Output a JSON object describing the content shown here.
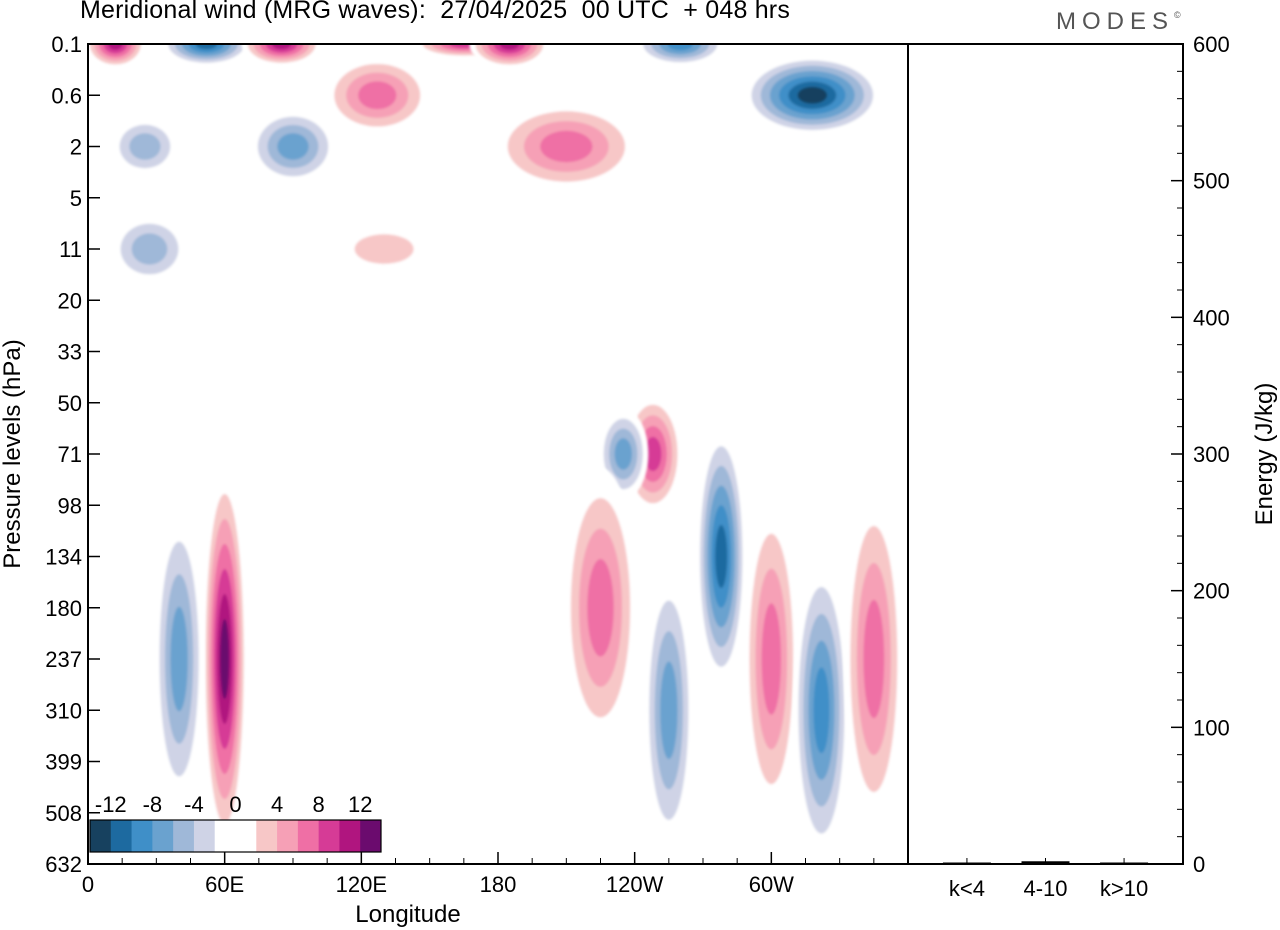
{
  "header": {
    "title": "Meridional wind (MRG waves):  27/04/2025  00 UTC  + 048 hrs",
    "logo": "MODES",
    "logo_mark": "©"
  },
  "chart_data": [
    {
      "type": "heatmap",
      "title": "Meridional wind (MRG waves):  27/04/2025  00 UTC  + 048 hrs",
      "xlabel": "Longitude",
      "ylabel": "Pressure levels (hPa)",
      "x_ticks": [
        "0",
        "60E",
        "120E",
        "180",
        "120W",
        "60W"
      ],
      "x_tick_values": [
        0,
        60,
        120,
        180,
        240,
        300
      ],
      "xlim": [
        0,
        360
      ],
      "y_ticks": [
        "0.1",
        "0.6",
        "2",
        "5",
        "11",
        "20",
        "33",
        "50",
        "71",
        "98",
        "134",
        "180",
        "237",
        "310",
        "399",
        "508",
        "632"
      ],
      "y_axis_inverted": true,
      "colorbar": {
        "labels": [
          "-12",
          "-8",
          "-4",
          "0",
          "4",
          "8",
          "12"
        ],
        "label_values": [
          -12,
          -8,
          -4,
          0,
          4,
          8,
          12
        ],
        "levels": [
          -14,
          -12,
          -10,
          -8,
          -6,
          -4,
          -2,
          0,
          2,
          4,
          6,
          8,
          10,
          12,
          14
        ],
        "colors": [
          "#17415f",
          "#1d6aa0",
          "#3f8fc8",
          "#6aa2cf",
          "#9fb8d8",
          "#cfd3e6",
          "#ffffff",
          "#ffffff",
          "#f7c7c7",
          "#f6a0b6",
          "#ef6fa5",
          "#d63b96",
          "#b0157f",
          "#6b0b6e"
        ]
      },
      "features": [
        {
          "lon": 12,
          "level": "0.1",
          "value": 12
        },
        {
          "lon": 52,
          "level": "0.1",
          "value": -12
        },
        {
          "lon": 85,
          "level": "0.1",
          "value": 12
        },
        {
          "lon": 165,
          "level": "0.1",
          "value": 10
        },
        {
          "lon": 185,
          "level": "0.1",
          "value": 12
        },
        {
          "lon": 260,
          "level": "0.1",
          "value": -10
        },
        {
          "lon": 318,
          "level": "0.6",
          "value": -14
        },
        {
          "lon": 127,
          "level": "0.6",
          "value": 8
        },
        {
          "lon": 210,
          "level": "2",
          "value": 8
        },
        {
          "lon": 90,
          "level": "2",
          "value": -8
        },
        {
          "lon": 25,
          "level": "2",
          "value": -6
        },
        {
          "lon": 27,
          "level": "11",
          "value": -6
        },
        {
          "lon": 130,
          "level": "11",
          "value": 4
        },
        {
          "lon": 248,
          "level": "71",
          "value": 10
        },
        {
          "lon": 235,
          "level": "71",
          "value": -8
        },
        {
          "lon": 60,
          "level": "237",
          "value": 14
        },
        {
          "lon": 40,
          "level": "237",
          "value": -8
        },
        {
          "lon": 278,
          "level": "134",
          "value": -12
        },
        {
          "lon": 225,
          "level": "180",
          "value": 8
        },
        {
          "lon": 300,
          "level": "237",
          "value": 8
        },
        {
          "lon": 322,
          "level": "310",
          "value": -10
        },
        {
          "lon": 345,
          "level": "237",
          "value": 8
        },
        {
          "lon": 255,
          "level": "310",
          "value": -8
        }
      ]
    },
    {
      "type": "bar",
      "categories": [
        "k<4",
        "4-10",
        "k>10"
      ],
      "values": [
        0,
        2,
        0
      ],
      "ylabel": "Energy (J/kg)",
      "ylim": [
        0,
        600
      ],
      "y_ticks": [
        "0",
        "100",
        "200",
        "300",
        "400",
        "500",
        "600"
      ]
    }
  ]
}
